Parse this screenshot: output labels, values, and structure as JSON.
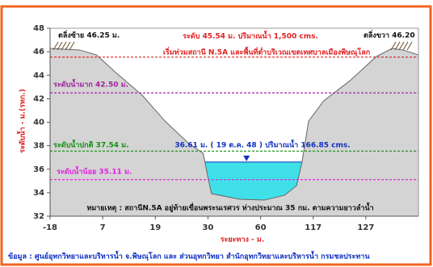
{
  "chart_data": {
    "type": "cross-section",
    "y_label": "ระดับน้ำ - ม.(รทก.)",
    "x_label": "ระยะทาง - ม.",
    "x_scale": "piecewise",
    "xlim": [
      -18,
      137
    ],
    "xticks": [
      -18,
      7,
      19,
      30,
      60,
      117,
      127
    ],
    "ylim": [
      32,
      48
    ],
    "yticks": [
      32,
      34,
      36,
      38,
      40,
      42,
      44,
      46,
      48
    ],
    "ground": {
      "color": "#d4d4d4",
      "x": [
        -18,
        -4,
        4,
        10,
        16,
        21,
        26,
        29,
        30,
        32,
        48,
        64,
        86,
        99,
        105,
        112,
        119,
        124,
        129,
        132,
        134,
        137
      ],
      "values": [
        46.28,
        46.15,
        45.73,
        44.22,
        42.3,
        40.1,
        38.18,
        37.35,
        35.3,
        33.92,
        33.44,
        33.37,
        33.78,
        34.6,
        36.67,
        40.1,
        41.82,
        43.54,
        45.6,
        46.28,
        46.15,
        45.73
      ]
    },
    "water": {
      "value": 36.61,
      "color": "#3fe0e8",
      "marker_color": "#1030c0",
      "label": "36.61 ม. ( 19 ต.ค. 48 )  ปริมาณน้ำ 166.85 cms."
    },
    "reference_lines": [
      {
        "value": 45.54,
        "color": "#e02020",
        "label": "ระดับ 45.54 ม. ปริมาณน้ำ 1,500 cms."
      },
      {
        "value": 42.5,
        "color": "#a020a0",
        "label": "ระดับน้ำมาก 42.50 ม."
      },
      {
        "value": 37.54,
        "color": "#109010",
        "label": "ระดับน้ำปกติ 37.54 ม."
      },
      {
        "value": 35.11,
        "color": "#e020e0",
        "label": "ระดับน้ำน้อย 35.11 ม."
      }
    ],
    "flood_note": "เริ่มท่วมสถานี N.5A และพื้นที่ต่ำบริเวณเขตเทศบาลเมืองพิษณุโลก",
    "left_bank": "ตลิ่งซ้าย 46.25 ม.",
    "right_bank": "ตลิ่งขวา 46.20",
    "note": "หมายเหตุ : สถานีN.5A อยู่ท้ายเขื่อนพระนเรศวร ห่างประมาณ 35 กม. ตามความยาวลำน้ำ",
    "source": "ข้อมูล : ศูนย์อุทกวิทยาและบริหารน้ำ จ.พิษณุโลก และ ส่วนอุทกวิทยา สำนักอุทกวิทยาและบริหารน้ำ กรมชลประทาน"
  }
}
